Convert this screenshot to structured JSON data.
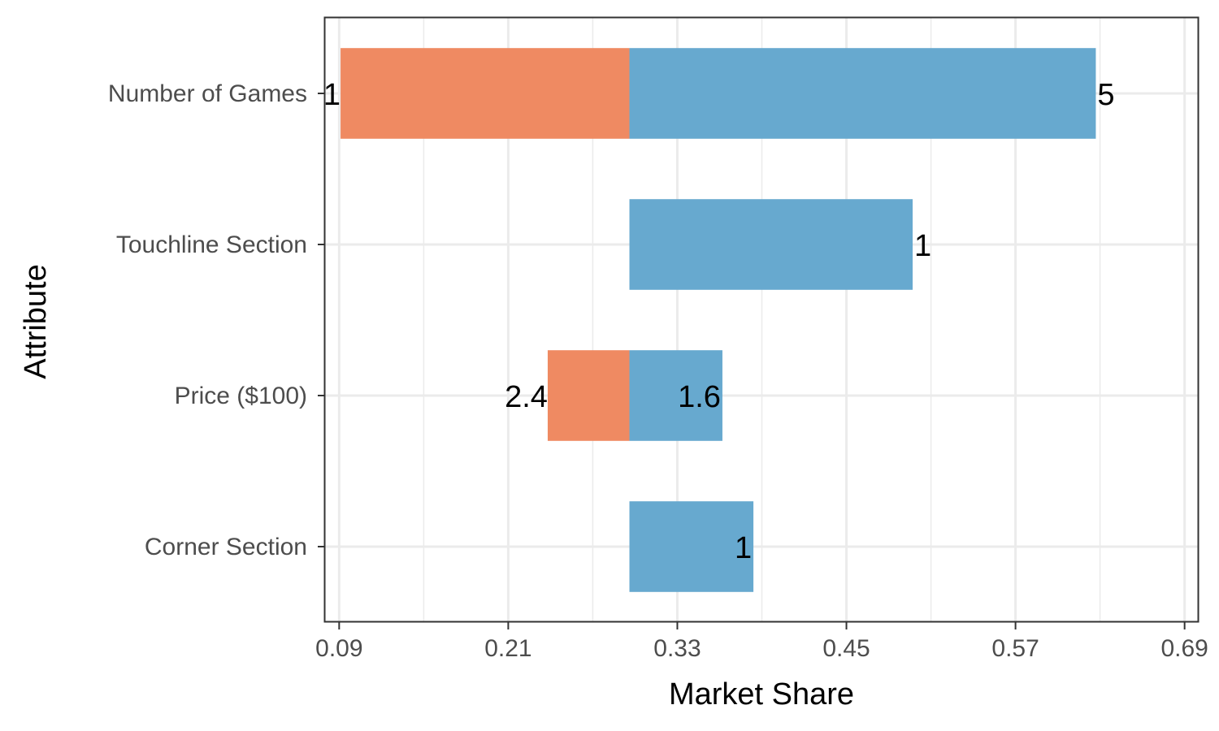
{
  "chart_data": {
    "type": "bar",
    "orientation": "horizontal",
    "baseline": 0.296,
    "xlabel": "Market Share",
    "ylabel": "Attribute",
    "xlim": [
      0.08,
      0.7
    ],
    "x_ticks": [
      0.09,
      0.21,
      0.33,
      0.45,
      0.57,
      0.69
    ],
    "x_tick_labels": [
      "0.09",
      "0.21",
      "0.33",
      "0.45",
      "0.57",
      "0.69"
    ],
    "categories": [
      "Number of Games",
      "Touchline Section",
      "Price ($100)",
      "Corner Section"
    ],
    "bars": [
      {
        "category": "Number of Games",
        "low": 0.091,
        "high": 0.627,
        "low_label": "1",
        "high_label": "5"
      },
      {
        "category": "Touchline Section",
        "low": null,
        "high": 0.497,
        "low_label": "",
        "high_label": "1"
      },
      {
        "category": "Price ($100)",
        "low": 0.238,
        "high": 0.362,
        "low_label": "2.4",
        "high_label": "1.6"
      },
      {
        "category": "Corner Section",
        "low": null,
        "high": 0.384,
        "low_label": "",
        "high_label": "1"
      }
    ],
    "colors": {
      "decrease": "#EF8A62",
      "increase": "#67A9CF"
    },
    "grid": true,
    "legend": "none"
  }
}
